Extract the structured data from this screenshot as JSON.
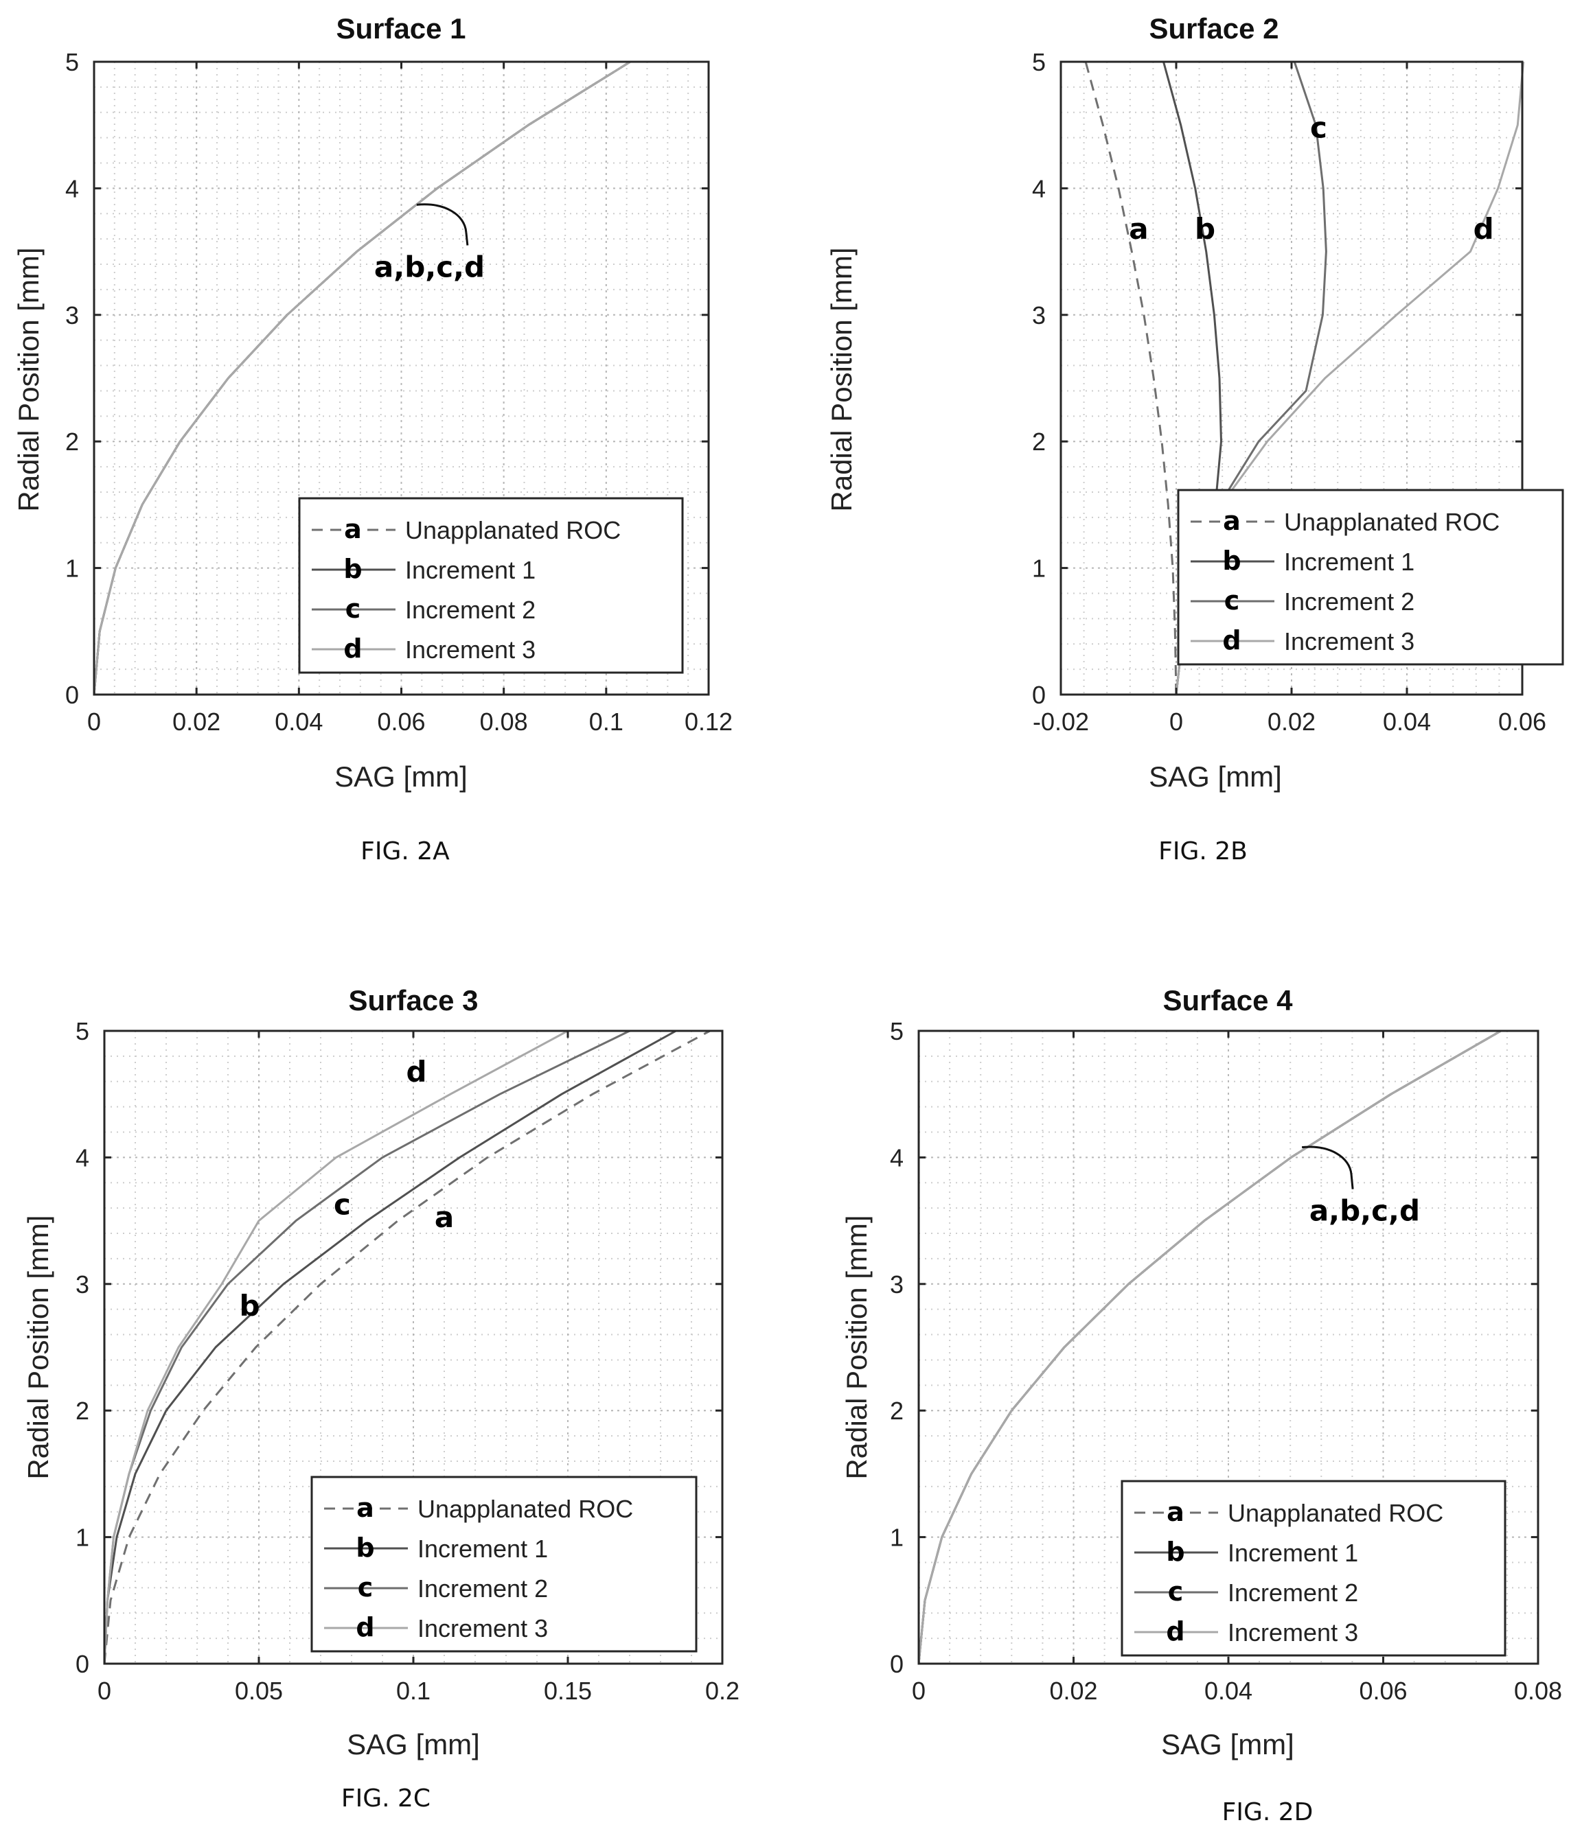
{
  "chart_data": [
    {
      "type": "line",
      "title": "Surface 1",
      "caption": "FIG. 2A",
      "xlabel": "SAG [mm]",
      "ylabel": "Radial Position [mm]",
      "xlim": [
        0,
        0.12
      ],
      "ylim": [
        0,
        5
      ],
      "xticks": [
        "0",
        "0.02",
        "0.04",
        "0.06",
        "0.08",
        "0.1",
        "0.12"
      ],
      "yticks": [
        "0",
        "1",
        "2",
        "3",
        "4",
        "5"
      ],
      "grid": true,
      "legend_position": "bottom-right",
      "series": [
        {
          "name": "Unapplanated ROC",
          "letter": "a",
          "style": "dashed",
          "color": "#707070",
          "points": [
            [
              0,
              0
            ],
            [
              0.0011,
              0.5
            ],
            [
              0.0042,
              1
            ],
            [
              0.0094,
              1.5
            ],
            [
              0.0168,
              2
            ],
            [
              0.0262,
              2.5
            ],
            [
              0.0377,
              3
            ],
            [
              0.0513,
              3.5
            ],
            [
              0.067,
              4
            ],
            [
              0.0848,
              4.5
            ],
            [
              0.1047,
              5
            ]
          ]
        },
        {
          "name": "Increment 1",
          "letter": "b",
          "style": "solid",
          "color": "#505050",
          "points": [
            [
              0,
              0
            ],
            [
              0.0011,
              0.5
            ],
            [
              0.0042,
              1
            ],
            [
              0.0094,
              1.5
            ],
            [
              0.0168,
              2
            ],
            [
              0.0262,
              2.5
            ],
            [
              0.0377,
              3
            ],
            [
              0.0513,
              3.5
            ],
            [
              0.067,
              4
            ],
            [
              0.0848,
              4.5
            ],
            [
              0.1047,
              5
            ]
          ]
        },
        {
          "name": "Increment 2",
          "letter": "c",
          "style": "solid",
          "color": "#6e6e6e",
          "points": [
            [
              0,
              0
            ],
            [
              0.0011,
              0.5
            ],
            [
              0.0042,
              1
            ],
            [
              0.0094,
              1.5
            ],
            [
              0.0168,
              2
            ],
            [
              0.0262,
              2.5
            ],
            [
              0.0377,
              3
            ],
            [
              0.0513,
              3.5
            ],
            [
              0.067,
              4
            ],
            [
              0.0848,
              4.5
            ],
            [
              0.1047,
              5
            ]
          ]
        },
        {
          "name": "Increment 3",
          "letter": "d",
          "style": "solid",
          "color": "#a8a8a8",
          "points": [
            [
              0,
              0
            ],
            [
              0.0011,
              0.5
            ],
            [
              0.0042,
              1
            ],
            [
              0.0094,
              1.5
            ],
            [
              0.0168,
              2
            ],
            [
              0.0262,
              2.5
            ],
            [
              0.0377,
              3
            ],
            [
              0.0513,
              3.5
            ],
            [
              0.067,
              4
            ],
            [
              0.0848,
              4.5
            ],
            [
              0.1047,
              5
            ]
          ]
        }
      ],
      "annotations": [
        {
          "text": "a,b,c,d",
          "x": 0.0655,
          "y": 3.3,
          "target": [
            0.063,
            3.87
          ],
          "brace": true
        }
      ]
    },
    {
      "type": "line",
      "title": "Surface 2",
      "caption": "FIG. 2B",
      "xlabel": "SAG [mm]",
      "ylabel": "Radial Position [mm]",
      "xlim": [
        -0.02,
        0.06
      ],
      "ylim": [
        0,
        5
      ],
      "xticks": [
        "-0.02",
        "0",
        "0.02",
        "0.04",
        "0.06"
      ],
      "yticks": [
        "0",
        "1",
        "2",
        "3",
        "4",
        "5"
      ],
      "grid": true,
      "legend_position": "bottom-right",
      "series": [
        {
          "name": "Unapplanated ROC",
          "letter": "a",
          "style": "dashed",
          "color": "#707070",
          "points": [
            [
              0,
              0
            ],
            [
              -0.0002,
              0.5
            ],
            [
              -0.0006,
              1
            ],
            [
              -0.0014,
              1.5
            ],
            [
              -0.0025,
              2
            ],
            [
              -0.0039,
              2.5
            ],
            [
              -0.0056,
              3
            ],
            [
              -0.0077,
              3.5
            ],
            [
              -0.01,
              4
            ],
            [
              -0.0127,
              4.5
            ],
            [
              -0.0157,
              5
            ]
          ]
        },
        {
          "name": "Increment 1",
          "letter": "b",
          "style": "solid",
          "color": "#505050",
          "points": [
            [
              0,
              0
            ],
            [
              0.0012,
              0.5
            ],
            [
              0.0035,
              1
            ],
            [
              0.0068,
              1.5
            ],
            [
              0.0078,
              2
            ],
            [
              0.0075,
              2.5
            ],
            [
              0.0066,
              3
            ],
            [
              0.0052,
              3.5
            ],
            [
              0.0033,
              4
            ],
            [
              0.0008,
              4.5
            ],
            [
              -0.0022,
              5
            ]
          ]
        },
        {
          "name": "Increment 2",
          "letter": "c",
          "style": "solid",
          "color": "#6e6e6e",
          "points": [
            [
              0,
              0
            ],
            [
              0.0012,
              0.5
            ],
            [
              0.0035,
              1
            ],
            [
              0.0075,
              1.5
            ],
            [
              0.0143,
              2
            ],
            [
              0.0225,
              2.4
            ],
            [
              0.0254,
              3
            ],
            [
              0.026,
              3.5
            ],
            [
              0.0255,
              4
            ],
            [
              0.0242,
              4.5
            ],
            [
              0.0205,
              5
            ]
          ]
        },
        {
          "name": "Increment 3",
          "letter": "d",
          "style": "solid",
          "color": "#a8a8a8",
          "points": [
            [
              0,
              0
            ],
            [
              0.0012,
              0.5
            ],
            [
              0.0035,
              1
            ],
            [
              0.0078,
              1.5
            ],
            [
              0.0158,
              2
            ],
            [
              0.0258,
              2.5
            ],
            [
              0.0382,
              3
            ],
            [
              0.051,
              3.5
            ],
            [
              0.0558,
              4
            ],
            [
              0.0592,
              4.5
            ],
            [
              0.0602,
              5
            ]
          ]
        }
      ],
      "annotations": [
        {
          "text": "a",
          "x": -0.0065,
          "y": 3.6
        },
        {
          "text": "b",
          "x": 0.005,
          "y": 3.6
        },
        {
          "text": "c",
          "x": 0.0247,
          "y": 4.4
        },
        {
          "text": "d",
          "x": 0.0533,
          "y": 3.6
        }
      ]
    },
    {
      "type": "line",
      "title": "Surface 3",
      "caption": "FIG. 2C",
      "xlabel": "SAG [mm]",
      "ylabel": "Radial Position [mm]",
      "xlim": [
        0,
        0.2
      ],
      "ylim": [
        0,
        5
      ],
      "xticks": [
        "0",
        "0.05",
        "0.1",
        "0.15",
        "0.2"
      ],
      "yticks": [
        "0",
        "1",
        "2",
        "3",
        "4",
        "5"
      ],
      "grid": true,
      "legend_position": "bottom-right",
      "series": [
        {
          "name": "Unapplanated ROC",
          "letter": "a",
          "style": "dashed",
          "color": "#707070",
          "points": [
            [
              0,
              0
            ],
            [
              0.002,
              0.5
            ],
            [
              0.008,
              1
            ],
            [
              0.018,
              1.5
            ],
            [
              0.032,
              2
            ],
            [
              0.049,
              2.5
            ],
            [
              0.07,
              3
            ],
            [
              0.095,
              3.5
            ],
            [
              0.124,
              4
            ],
            [
              0.158,
              4.5
            ],
            [
              0.196,
              5
            ]
          ]
        },
        {
          "name": "Increment 1",
          "letter": "b",
          "style": "solid",
          "color": "#505050",
          "points": [
            [
              0,
              0
            ],
            [
              0.001,
              0.5
            ],
            [
              0.004,
              1
            ],
            [
              0.01,
              1.5
            ],
            [
              0.02,
              2
            ],
            [
              0.036,
              2.5
            ],
            [
              0.058,
              3
            ],
            [
              0.085,
              3.5
            ],
            [
              0.115,
              4
            ],
            [
              0.148,
              4.5
            ],
            [
              0.185,
              5
            ]
          ]
        },
        {
          "name": "Increment 2",
          "letter": "c",
          "style": "solid",
          "color": "#6e6e6e",
          "points": [
            [
              0,
              0
            ],
            [
              0.001,
              0.5
            ],
            [
              0.003,
              1
            ],
            [
              0.008,
              1.5
            ],
            [
              0.015,
              2
            ],
            [
              0.025,
              2.5
            ],
            [
              0.04,
              3
            ],
            [
              0.062,
              3.5
            ],
            [
              0.09,
              4
            ],
            [
              0.128,
              4.5
            ],
            [
              0.17,
              5
            ]
          ]
        },
        {
          "name": "Increment 3",
          "letter": "d",
          "style": "solid",
          "color": "#a8a8a8",
          "points": [
            [
              0,
              0
            ],
            [
              0.001,
              0.5
            ],
            [
              0.003,
              1
            ],
            [
              0.008,
              1.5
            ],
            [
              0.014,
              2
            ],
            [
              0.024,
              2.5
            ],
            [
              0.038,
              3
            ],
            [
              0.05,
              3.5
            ],
            [
              0.075,
              4
            ],
            [
              0.112,
              4.5
            ],
            [
              0.15,
              5
            ]
          ]
        }
      ],
      "annotations": [
        {
          "text": "a",
          "x": 0.11,
          "y": 3.45
        },
        {
          "text": "b",
          "x": 0.047,
          "y": 2.75
        },
        {
          "text": "c",
          "x": 0.077,
          "y": 3.55
        },
        {
          "text": "d",
          "x": 0.101,
          "y": 4.6
        }
      ]
    },
    {
      "type": "line",
      "title": "Surface 4",
      "caption": "FIG. 2D",
      "xlabel": "SAG [mm]",
      "ylabel": "Radial Position [mm]",
      "xlim": [
        0,
        0.08
      ],
      "ylim": [
        0,
        5
      ],
      "xticks": [
        "0",
        "0.02",
        "0.04",
        "0.06",
        "0.08"
      ],
      "yticks": [
        "0",
        "1",
        "2",
        "3",
        "4",
        "5"
      ],
      "grid": true,
      "legend_position": "bottom-right",
      "series": [
        {
          "name": "Unapplanated ROC",
          "letter": "a",
          "style": "dashed",
          "color": "#707070",
          "points": [
            [
              0,
              0
            ],
            [
              0.0008,
              0.5
            ],
            [
              0.003,
              1
            ],
            [
              0.0068,
              1.5
            ],
            [
              0.012,
              2
            ],
            [
              0.0188,
              2.5
            ],
            [
              0.0271,
              3
            ],
            [
              0.0369,
              3.5
            ],
            [
              0.0481,
              4
            ],
            [
              0.061,
              4.5
            ],
            [
              0.0752,
              5
            ]
          ]
        },
        {
          "name": "Increment 1",
          "letter": "b",
          "style": "solid",
          "color": "#505050",
          "points": [
            [
              0,
              0
            ],
            [
              0.0008,
              0.5
            ],
            [
              0.003,
              1
            ],
            [
              0.0068,
              1.5
            ],
            [
              0.012,
              2
            ],
            [
              0.0188,
              2.5
            ],
            [
              0.0271,
              3
            ],
            [
              0.0369,
              3.5
            ],
            [
              0.0481,
              4
            ],
            [
              0.061,
              4.5
            ],
            [
              0.0752,
              5
            ]
          ]
        },
        {
          "name": "Increment 2",
          "letter": "c",
          "style": "solid",
          "color": "#6e6e6e",
          "points": [
            [
              0,
              0
            ],
            [
              0.0008,
              0.5
            ],
            [
              0.003,
              1
            ],
            [
              0.0068,
              1.5
            ],
            [
              0.012,
              2
            ],
            [
              0.0188,
              2.5
            ],
            [
              0.0271,
              3
            ],
            [
              0.0369,
              3.5
            ],
            [
              0.0481,
              4
            ],
            [
              0.061,
              4.5
            ],
            [
              0.0752,
              5
            ]
          ]
        },
        {
          "name": "Increment 3",
          "letter": "d",
          "style": "solid",
          "color": "#a8a8a8",
          "points": [
            [
              0,
              0
            ],
            [
              0.0008,
              0.5
            ],
            [
              0.003,
              1
            ],
            [
              0.0068,
              1.5
            ],
            [
              0.012,
              2
            ],
            [
              0.0188,
              2.5
            ],
            [
              0.0271,
              3
            ],
            [
              0.0369,
              3.5
            ],
            [
              0.0481,
              4
            ],
            [
              0.061,
              4.5
            ],
            [
              0.0752,
              5
            ]
          ]
        }
      ],
      "annotations": [
        {
          "text": "a,b,c,d",
          "x": 0.0576,
          "y": 3.5,
          "target": [
            0.0495,
            4.08
          ],
          "brace": true
        }
      ]
    }
  ]
}
